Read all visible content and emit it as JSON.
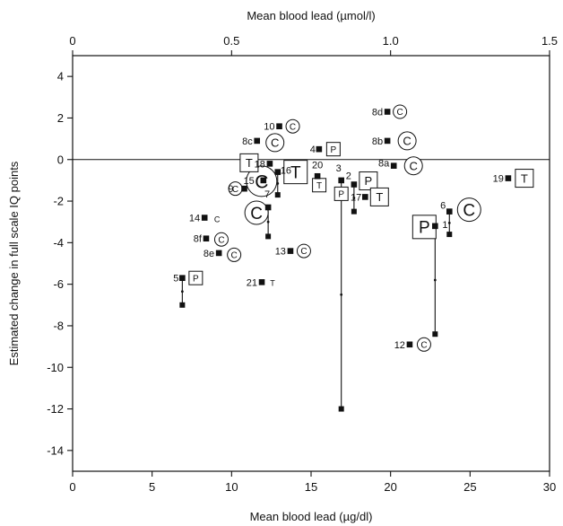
{
  "chart_data": {
    "type": "scatter",
    "title": "",
    "xlabel": "Mean blood lead (µg/dl)",
    "x2label": "Mean blood lead (µmol/l)",
    "ylabel": "Estimated change in full scale IQ points",
    "xlim": [
      0,
      30
    ],
    "ylim": [
      -15,
      5
    ],
    "x2lim": [
      0,
      1.5
    ],
    "xticks": [
      "0",
      "5",
      "10",
      "15",
      "20",
      "25",
      "30"
    ],
    "x2ticks": [
      "0",
      "0.5",
      "1.0",
      "1.5"
    ],
    "yticks": [
      "4",
      "2",
      "0",
      "-2",
      "-4",
      "-6",
      "-8",
      "-10",
      "-12",
      "-14"
    ],
    "reference_line_y": 0,
    "marker_legend": {
      "C": "C",
      "P": "P",
      "T": "T"
    },
    "points": [
      {
        "id": "1",
        "x": 22.8,
        "y": -3.2,
        "design": "P",
        "size": "large"
      },
      {
        "id": "2",
        "x": 17.7,
        "y": -1.2,
        "design": "P",
        "size": "medium"
      },
      {
        "id": "3",
        "x": 16.9,
        "y": -1.0,
        "design": "P",
        "size": "small"
      },
      {
        "id": "4",
        "x": 15.5,
        "y": 0.5,
        "design": "P",
        "size": "small"
      },
      {
        "id": "5",
        "x": 6.9,
        "y": -5.7,
        "design": "P",
        "size": "small"
      },
      {
        "id": "6",
        "x": 23.7,
        "y": -2.5,
        "design": "C",
        "size": "large"
      },
      {
        "id": "7",
        "x": 12.3,
        "y": -2.3,
        "design": "C",
        "size": "large"
      },
      {
        "id": "8a",
        "x": 20.2,
        "y": -0.3,
        "design": "C",
        "size": "medium"
      },
      {
        "id": "8b",
        "x": 19.8,
        "y": 0.9,
        "design": "C",
        "size": "medium"
      },
      {
        "id": "8c",
        "x": 11.6,
        "y": 0.9,
        "design": "C",
        "size": "medium"
      },
      {
        "id": "8d",
        "x": 19.8,
        "y": 2.3,
        "design": "C",
        "size": "small"
      },
      {
        "id": "8e",
        "x": 9.2,
        "y": -4.5,
        "design": "C",
        "size": "small"
      },
      {
        "id": "8f",
        "x": 8.4,
        "y": -3.8,
        "design": "C",
        "size": "small"
      },
      {
        "id": "9",
        "x": 10.8,
        "y": -1.4,
        "design": "C",
        "size": "small"
      },
      {
        "id": "10",
        "x": 13.0,
        "y": 1.6,
        "design": "C",
        "size": "small"
      },
      {
        "id": "12",
        "x": 21.2,
        "y": -8.9,
        "design": "C",
        "size": "small"
      },
      {
        "id": "13",
        "x": 13.7,
        "y": -4.4,
        "design": "C",
        "size": "small"
      },
      {
        "id": "14",
        "x": 8.3,
        "y": -2.8,
        "design": "C",
        "size": "tiny"
      },
      {
        "id": "15",
        "x": 12.0,
        "y": -1.0,
        "design": "C",
        "size": "xlarge"
      },
      {
        "id": "16",
        "x": 12.9,
        "y": -0.6,
        "design": "T",
        "size": "large"
      },
      {
        "id": "17",
        "x": 18.4,
        "y": -1.8,
        "design": "T",
        "size": "medium"
      },
      {
        "id": "18",
        "x": 12.4,
        "y": -0.2,
        "design": "T",
        "size": "medium"
      },
      {
        "id": "19",
        "x": 27.4,
        "y": -0.9,
        "design": "T",
        "size": "medium"
      },
      {
        "id": "20",
        "x": 15.4,
        "y": -0.8,
        "design": "T",
        "size": "small"
      },
      {
        "id": "21",
        "x": 11.9,
        "y": -5.9,
        "design": "T",
        "size": "tiny"
      }
    ],
    "ranges": [
      {
        "x": 6.9,
        "y_from": -5.7,
        "y_to": -7.0
      },
      {
        "x": 12.3,
        "y_from": -2.3,
        "y_to": -3.7
      },
      {
        "x": 12.9,
        "y_from": -0.6,
        "y_to": -1.7
      },
      {
        "x": 16.9,
        "y_from": -1.0,
        "y_to": -12.0
      },
      {
        "x": 17.7,
        "y_from": -1.2,
        "y_to": -2.5
      },
      {
        "x": 22.8,
        "y_from": -3.2,
        "y_to": -8.4
      },
      {
        "x": 23.7,
        "y_from": -2.5,
        "y_to": -3.6
      }
    ]
  }
}
